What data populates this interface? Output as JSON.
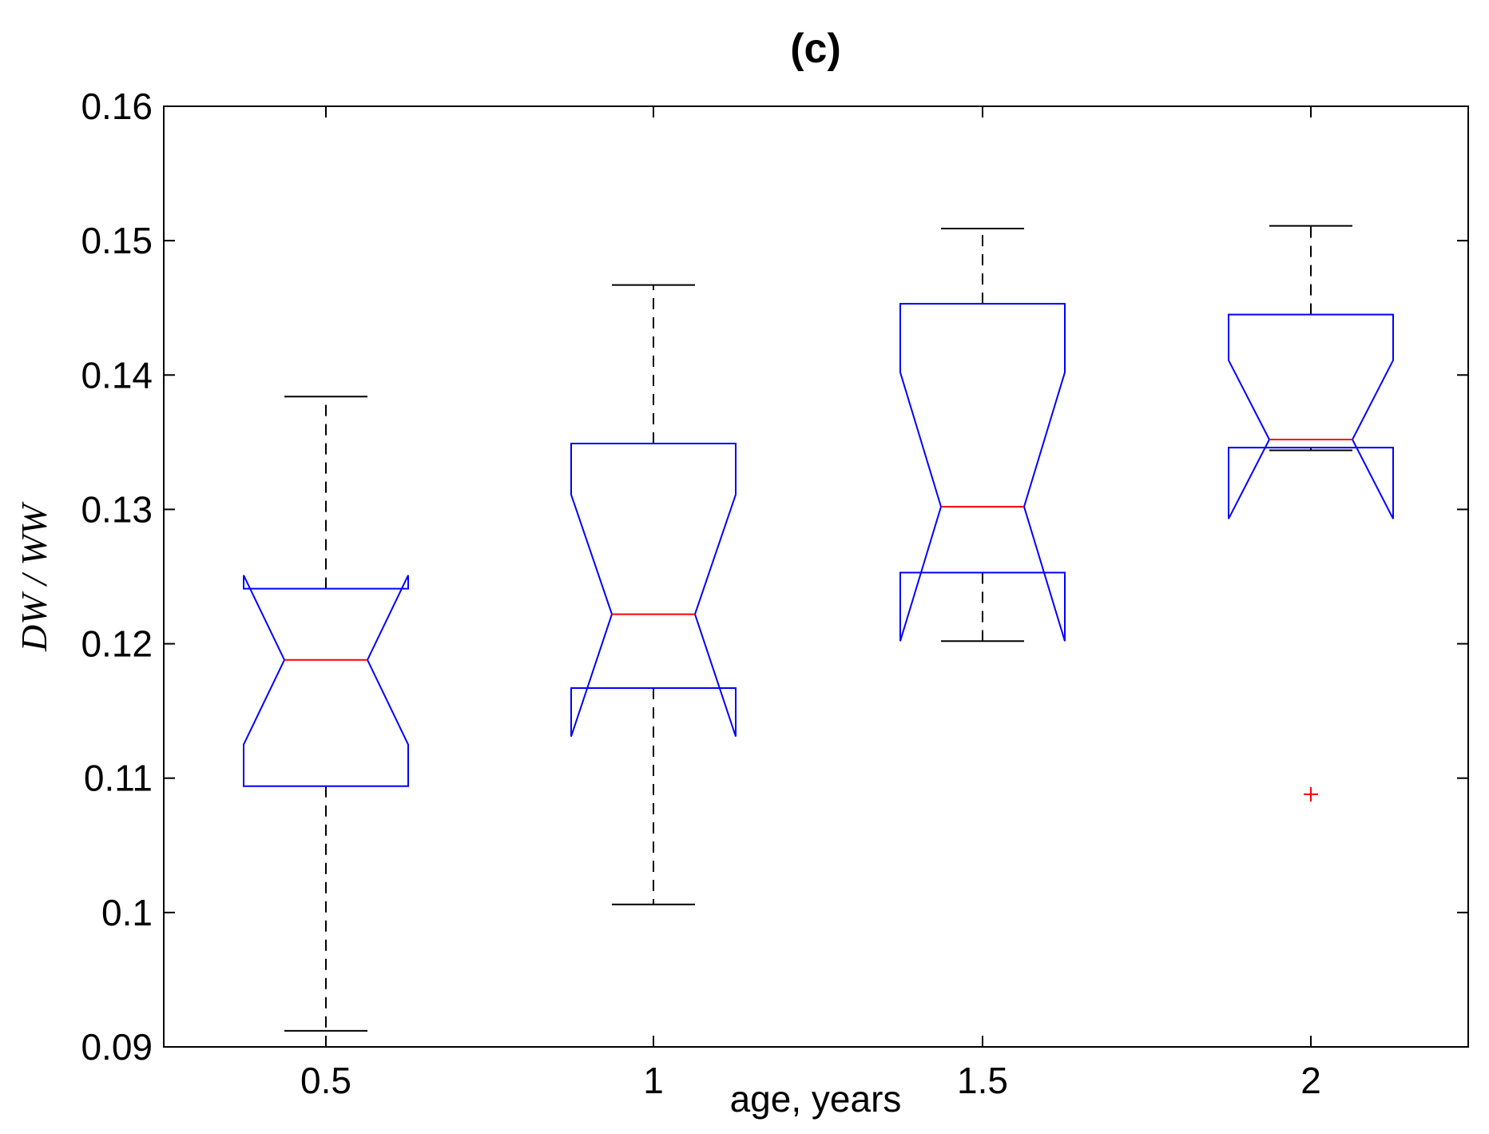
{
  "chart_data": {
    "type": "boxplot",
    "notched": true,
    "title": "(c)",
    "xlabel": "age, years",
    "ylabel": "DW / WW",
    "xticks": [
      "0.5",
      "1",
      "1.5",
      "2"
    ],
    "yticks": [
      "0.09",
      "0.1",
      "0.11",
      "0.12",
      "0.13",
      "0.14",
      "0.15",
      "0.16"
    ],
    "ylim": [
      0.09,
      0.16
    ],
    "grid": false,
    "box_color": "#0000ff",
    "median_color": "#ff0000",
    "whisker_color": "#000000",
    "outlier_color": "#ff0000",
    "boxes": [
      {
        "category": "0.5",
        "q1": 0.1094,
        "median": 0.1188,
        "q3": 0.1241,
        "notch_low": 0.1125,
        "notch_high": 0.1251,
        "whisker_low": 0.0912,
        "whisker_high": 0.1384,
        "outliers": []
      },
      {
        "category": "1",
        "q1": 0.1167,
        "median": 0.1222,
        "q3": 0.1349,
        "notch_low": 0.1131,
        "notch_high": 0.1311,
        "whisker_low": 0.1006,
        "whisker_high": 0.1467,
        "outliers": []
      },
      {
        "category": "1.5",
        "q1": 0.1253,
        "median": 0.1302,
        "q3": 0.1453,
        "notch_low": 0.1202,
        "notch_high": 0.1402,
        "whisker_low": 0.1202,
        "whisker_high": 0.1509,
        "outliers": []
      },
      {
        "category": "2",
        "q1": 0.1346,
        "median": 0.1352,
        "q3": 0.1445,
        "notch_low": 0.1293,
        "notch_high": 0.1411,
        "whisker_low": 0.1344,
        "whisker_high": 0.1511,
        "outliers": [
          0.1088
        ]
      }
    ]
  }
}
